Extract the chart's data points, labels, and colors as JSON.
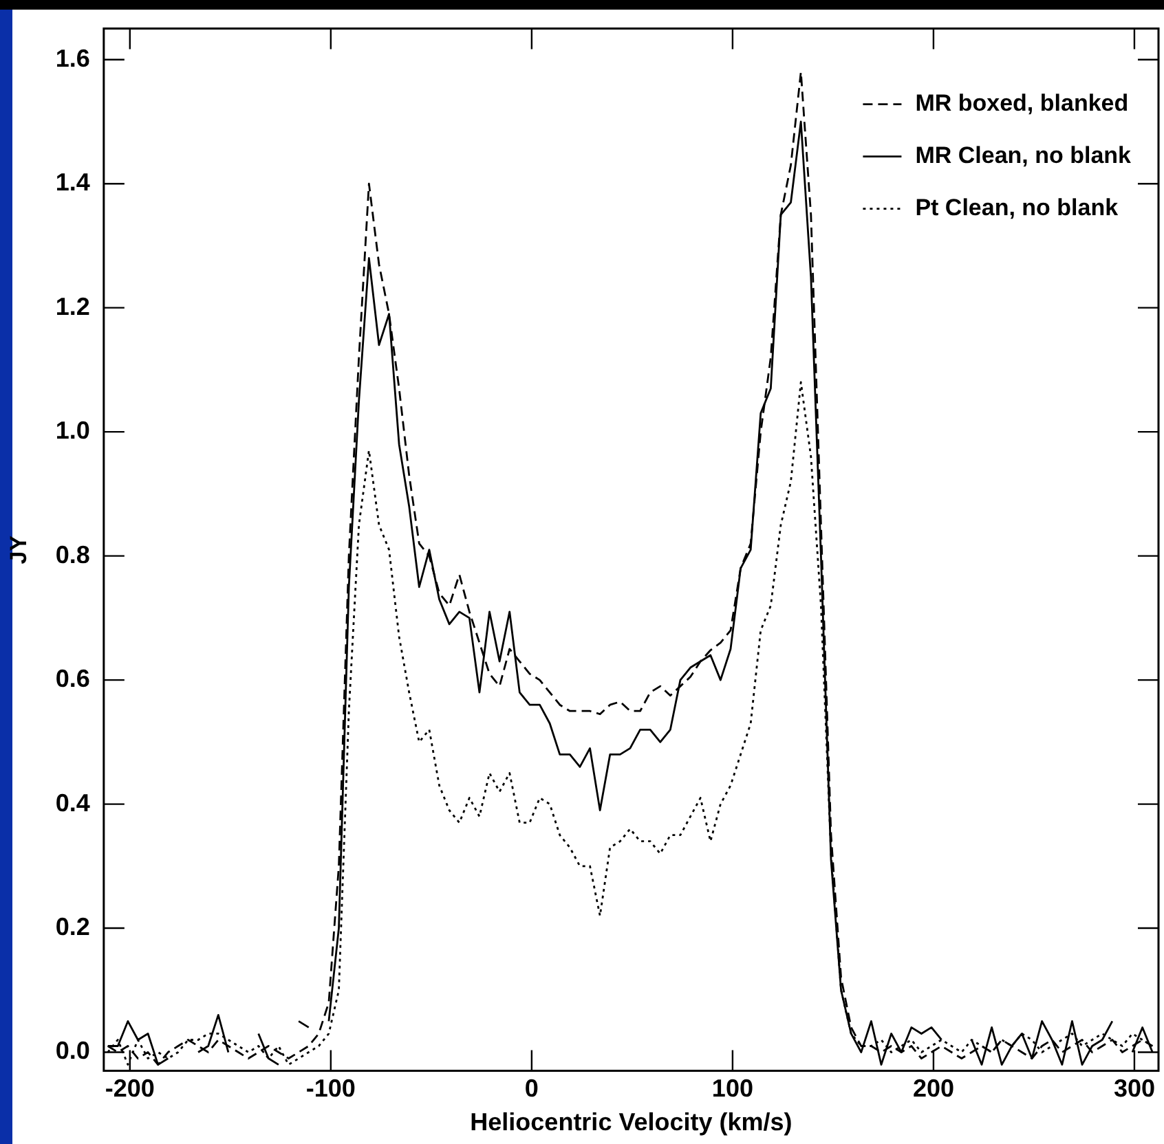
{
  "chart_data": {
    "type": "line",
    "xlabel": "Heliocentric Velocity (km/s)",
    "ylabel": "JY",
    "xlim": [
      -213,
      312
    ],
    "ylim": [
      -0.03,
      1.65
    ],
    "xticks": [
      -200,
      -100,
      0,
      100,
      200,
      300
    ],
    "yticks": [
      {
        "value": 0,
        "label": "0.0"
      },
      {
        "value": 0.2,
        "label": "0.2"
      },
      {
        "value": 0.4,
        "label": "0.4"
      },
      {
        "value": 0.6,
        "label": "0.6"
      },
      {
        "value": 0.8,
        "label": "0.8"
      },
      {
        "value": 1,
        "label": "1.0"
      },
      {
        "value": 1.2,
        "label": "1.2"
      },
      {
        "value": 1.4,
        "label": "1.4"
      },
      {
        "value": 1.6,
        "label": "1.6"
      }
    ],
    "x": [
      -211,
      -206,
      -201,
      -196,
      -191,
      -186,
      -181,
      -176,
      -171,
      -166,
      -161,
      -156,
      -151,
      -146,
      -141,
      -136,
      -131,
      -126,
      -121,
      -116,
      -111,
      -106,
      -101,
      -96,
      -91,
      -86,
      -81,
      -76,
      -71,
      -66,
      -61,
      -56,
      -51,
      -46,
      -41,
      -36,
      -31,
      -26,
      -21,
      -16,
      -11,
      -6,
      -1,
      4,
      9,
      14,
      19,
      24,
      29,
      34,
      39,
      44,
      49,
      54,
      59,
      64,
      69,
      74,
      79,
      84,
      89,
      94,
      99,
      104,
      109,
      114,
      119,
      124,
      129,
      134,
      139,
      144,
      149,
      154,
      159,
      164,
      169,
      174,
      179,
      184,
      189,
      194,
      199,
      204,
      209,
      214,
      219,
      224,
      229,
      234,
      239,
      244,
      249,
      254,
      259,
      264,
      269,
      274,
      279,
      284,
      289,
      294,
      299,
      304,
      309
    ],
    "series": [
      {
        "name": "MR boxed, blanked",
        "color": "#000000",
        "line_style": "dashed",
        "values": [
          0.01,
          0,
          0.01,
          -0.01,
          0,
          -0.02,
          0,
          0.01,
          0.02,
          0.01,
          0,
          0.02,
          0.01,
          0,
          -0.01,
          0,
          0.01,
          0,
          -0.01,
          0,
          0.01,
          0.03,
          0.08,
          0.3,
          0.8,
          1.12,
          1.4,
          1.27,
          1.19,
          1.07,
          0.93,
          0.82,
          0.8,
          0.74,
          0.72,
          0.77,
          0.71,
          0.66,
          0.61,
          0.59,
          0.65,
          0.63,
          0.61,
          0.6,
          0.58,
          0.56,
          0.55,
          0.55,
          0.55,
          0.545,
          0.56,
          0.565,
          0.55,
          0.55,
          0.58,
          0.59,
          0.575,
          0.59,
          0.605,
          0.63,
          0.648,
          0.66,
          0.68,
          0.78,
          0.82,
          1,
          1.12,
          1.35,
          1.43,
          1.58,
          1.35,
          0.85,
          0.35,
          0.12,
          0.04,
          0.01,
          0.01,
          0,
          0.01,
          0,
          0.01,
          -0.01,
          0,
          0.01,
          0,
          -0.01,
          0,
          0.01,
          0,
          0.02,
          0.01,
          0,
          -0.01,
          0.01,
          0.02,
          0,
          0.01,
          0.02,
          0,
          0.01,
          0.02,
          0,
          0.01,
          0.02,
          0.01
        ]
      },
      {
        "name": "MR Clean, no blank",
        "color": "#000000",
        "line_style": "solid",
        "values": [
          0.01,
          0.01,
          0.05,
          0.02,
          0.03,
          -0.02,
          -0.01,
          null,
          null,
          0,
          0.01,
          0.06,
          0,
          null,
          null,
          0.03,
          -0.01,
          -0.02,
          null,
          0.05,
          0.04,
          null,
          0.05,
          0.2,
          0.75,
          1.05,
          1.28,
          1.14,
          1.19,
          0.98,
          0.88,
          0.75,
          0.81,
          0.73,
          0.69,
          0.71,
          0.7,
          0.58,
          0.71,
          0.63,
          0.71,
          0.58,
          0.56,
          0.56,
          0.53,
          0.48,
          0.48,
          0.46,
          0.49,
          0.39,
          0.48,
          0.48,
          0.49,
          0.52,
          0.52,
          0.5,
          0.52,
          0.6,
          0.62,
          0.63,
          0.64,
          0.6,
          0.65,
          0.78,
          0.81,
          1.03,
          1.07,
          1.35,
          1.37,
          1.5,
          1.25,
          0.8,
          0.31,
          0.1,
          0.03,
          0,
          0.05,
          -0.02,
          0.03,
          0,
          0.04,
          0.03,
          0.04,
          0.02,
          null,
          null,
          0.02,
          -0.02,
          0.04,
          -0.02,
          0.01,
          0.03,
          -0.01,
          0.05,
          0.02,
          -0.02,
          0.05,
          -0.02,
          0.01,
          0.02,
          0.05,
          null,
          0,
          0.04,
          0
        ]
      },
      {
        "name": "Pt Clean, no blank",
        "color": "#000000",
        "line_style": "dotted",
        "values": [
          0,
          0.02,
          -0.02,
          0.02,
          -0.01,
          0,
          -0.01,
          0,
          0.02,
          0.02,
          0.03,
          0.03,
          0.02,
          0.01,
          0,
          0.01,
          -0.01,
          0.01,
          -0.02,
          -0.01,
          0,
          0.01,
          0.03,
          0.1,
          0.55,
          0.85,
          0.97,
          0.85,
          0.81,
          0.67,
          0.58,
          0.5,
          0.52,
          0.43,
          0.39,
          0.37,
          0.41,
          0.38,
          0.45,
          0.42,
          0.45,
          0.37,
          0.37,
          0.41,
          0.4,
          0.35,
          0.33,
          0.3,
          0.3,
          0.22,
          0.33,
          0.34,
          0.36,
          0.34,
          0.34,
          0.32,
          0.35,
          0.35,
          0.38,
          0.41,
          0.34,
          0.4,
          0.43,
          0.48,
          0.53,
          0.68,
          0.72,
          0.85,
          0.92,
          1.08,
          0.96,
          0.72,
          0.32,
          0.1,
          0.03,
          0.01,
          0.01,
          0.02,
          0,
          0.01,
          0.02,
          0,
          0.01,
          0.02,
          0.01,
          0,
          0.02,
          0.01,
          0,
          0.02,
          0.01,
          0.03,
          0.02,
          0,
          0.01,
          0.02,
          0.03,
          0.01,
          0.02,
          0.03,
          0.02,
          0.01,
          0.03,
          0.02,
          0.01
        ]
      }
    ],
    "grid": false,
    "legend": "top right",
    "marker": "none"
  }
}
